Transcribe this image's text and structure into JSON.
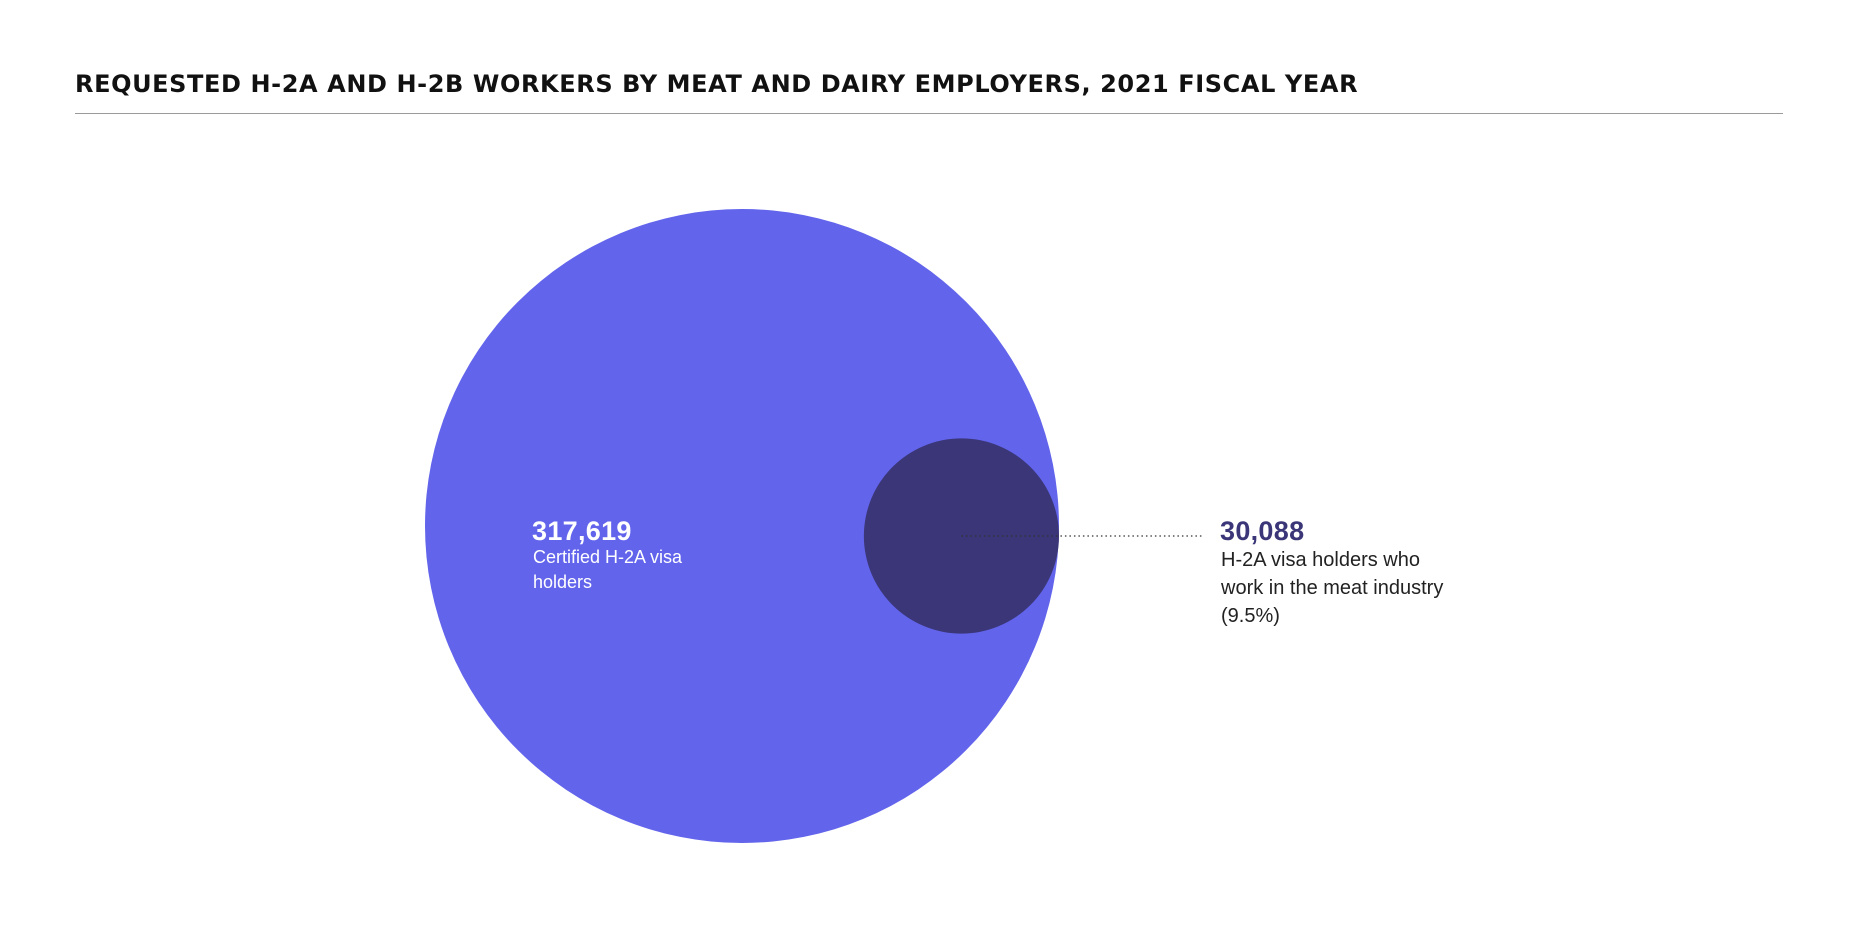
{
  "title": "REQUESTED H-2A AND H-2B WORKERS BY MEAT AND DAIRY EMPLOYERS, 2021 FISCAL YEAR",
  "colors": {
    "outer_circle": "#6264ec",
    "inner_circle": "#3a3678",
    "outer_label": "#ffffff",
    "inner_value": "#3a3678",
    "inner_desc": "#222222",
    "leader_line": "#333333"
  },
  "chart_data": {
    "type": "proportional-area",
    "series": [
      {
        "value": 317619,
        "value_label": "317,619",
        "description": "Certified H-2A visa holders"
      },
      {
        "value": 30088,
        "value_label": "30,088",
        "description": "H-2A visa holders who work in the meat industry (9.5%)"
      }
    ],
    "share_percent": 9.5
  }
}
